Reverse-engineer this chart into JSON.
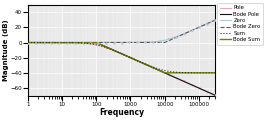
{
  "title": "",
  "xlabel": "Frequency",
  "ylabel": "Magnitude (dB)",
  "ylim": [
    -70,
    50
  ],
  "xlim": [
    1,
    300000
  ],
  "pole_freq": 100,
  "zero_freq": 10000,
  "legend_entries": [
    "Zero",
    "Bode Zero",
    "Sum",
    "Bode Sum",
    "Pole",
    "Bode Pole"
  ],
  "colors": {
    "zero": "#b0c8d8",
    "bode_zero": "#555555",
    "sum": "#333333",
    "bode_sum": "#6b8000",
    "pole": "#e8a8b8",
    "bode_pole": "#111111"
  },
  "bg_color": "#e8e8e8",
  "grid_color": "#ffffff",
  "yticks": [
    -60,
    -40,
    -20,
    0,
    20,
    40
  ],
  "xtick_labels": [
    "1",
    "10",
    "100",
    "1000",
    "10000",
    "100000"
  ],
  "xtick_vals": [
    1,
    10,
    100,
    1000,
    10000,
    100000
  ]
}
